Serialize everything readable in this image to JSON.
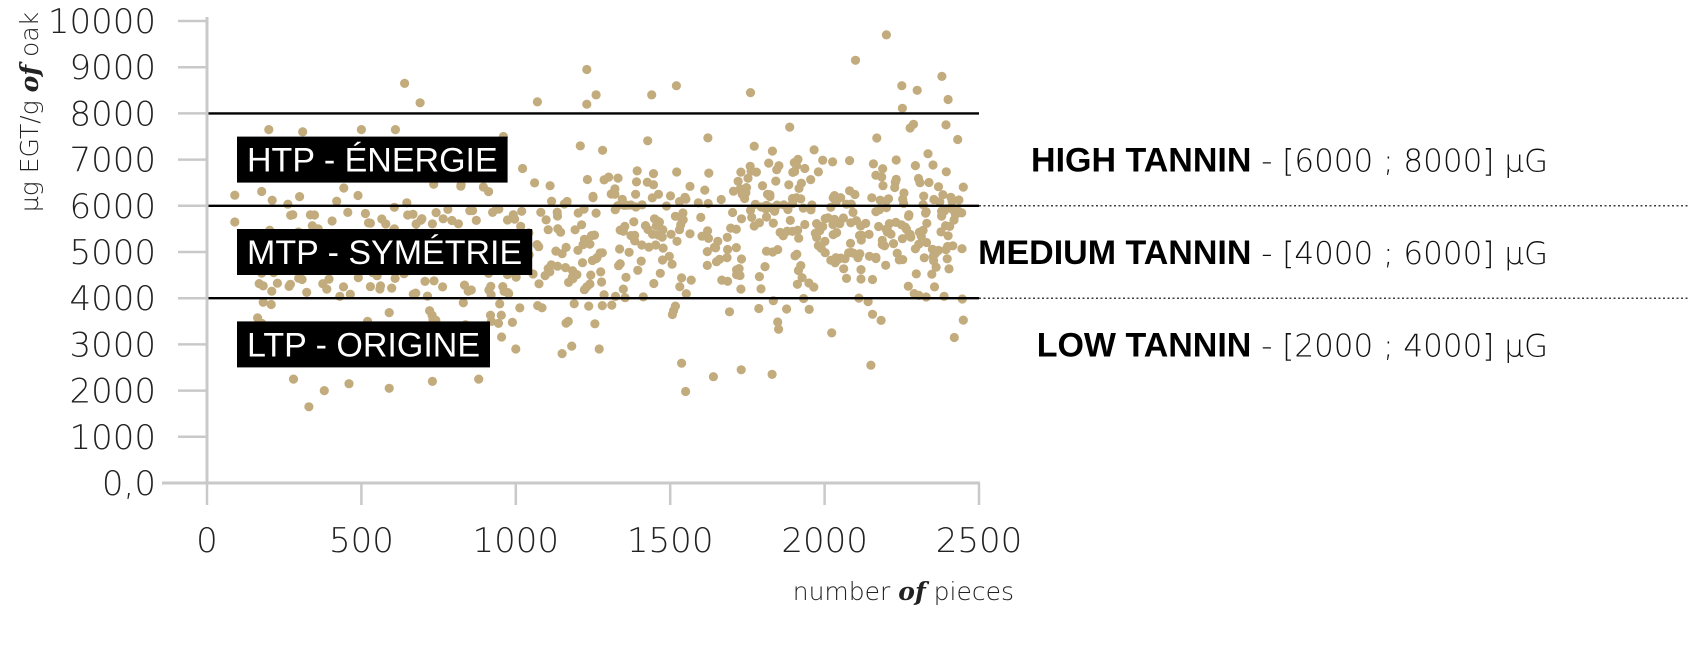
{
  "chart_data": {
    "type": "scatter",
    "title": "",
    "xlabel": {
      "pre": "number ",
      "em": "of",
      "post": " pieces"
    },
    "ylabel": {
      "pre": "µg EGT/g ",
      "em": "of",
      "post": " oak"
    },
    "xlim": [
      0,
      2500
    ],
    "ylim": [
      0,
      10000
    ],
    "x_ticks": [
      "0",
      "500",
      "1000",
      "1500",
      "2000",
      "2500"
    ],
    "y_ticks": [
      "0,0",
      "1000",
      "2000",
      "3000",
      "4000",
      "5000",
      "6000",
      "7000",
      "8000",
      "9000",
      "10000"
    ],
    "grid": false,
    "point_color": "#c2ab7c",
    "thresholds": [
      4000,
      6000,
      8000
    ],
    "tiers": [
      {
        "code": "HTP - ÉNERGIE",
        "name": "HIGH TANNIN",
        "range": " - [6000 ; 8000] µG",
        "y_center": 7000
      },
      {
        "code": "MTP - SYMÉTRIE",
        "name": "MEDIUM TANNIN",
        "range": " - [4000 ; 6000] µG",
        "y_center": 5000
      },
      {
        "code": "LTP - ORIGINE",
        "name": "LOW TANNIN",
        "range": " - [2000 ; 4000] µG",
        "y_center": 3000
      }
    ],
    "n_points": 700,
    "points": [
      [
        90,
        6230
      ],
      [
        90,
        5650
      ],
      [
        200,
        7650
      ],
      [
        310,
        7600
      ],
      [
        300,
        6200
      ],
      [
        270,
        4300
      ],
      [
        280,
        2250
      ],
      [
        330,
        1650
      ],
      [
        380,
        2000
      ],
      [
        460,
        2150
      ],
      [
        590,
        2050
      ],
      [
        640,
        8650
      ],
      [
        690,
        8230
      ],
      [
        610,
        7650
      ],
      [
        500,
        7650
      ],
      [
        730,
        2200
      ],
      [
        880,
        2250
      ],
      [
        240,
        4800
      ],
      [
        360,
        5500
      ],
      [
        420,
        6100
      ],
      [
        520,
        3500
      ],
      [
        560,
        4200
      ],
      [
        650,
        5800
      ],
      [
        700,
        3100
      ],
      [
        780,
        6900
      ],
      [
        830,
        3900
      ],
      [
        900,
        5200
      ],
      [
        960,
        7500
      ],
      [
        1000,
        2900
      ],
      [
        1070,
        8250
      ],
      [
        1230,
        8950
      ],
      [
        1260,
        8400
      ],
      [
        1230,
        8200
      ],
      [
        1440,
        8400
      ],
      [
        1520,
        8600
      ],
      [
        1760,
        8450
      ],
      [
        2100,
        9150
      ],
      [
        2200,
        9700
      ],
      [
        2250,
        8600
      ],
      [
        2300,
        8500
      ],
      [
        2380,
        8800
      ],
      [
        2400,
        8300
      ],
      [
        1550,
        1980
      ],
      [
        1640,
        2300
      ],
      [
        1730,
        2450
      ],
      [
        1830,
        2350
      ],
      [
        2150,
        2550
      ],
      [
        2420,
        3150
      ],
      [
        1150,
        2800
      ],
      [
        1270,
        2900
      ]
    ]
  }
}
